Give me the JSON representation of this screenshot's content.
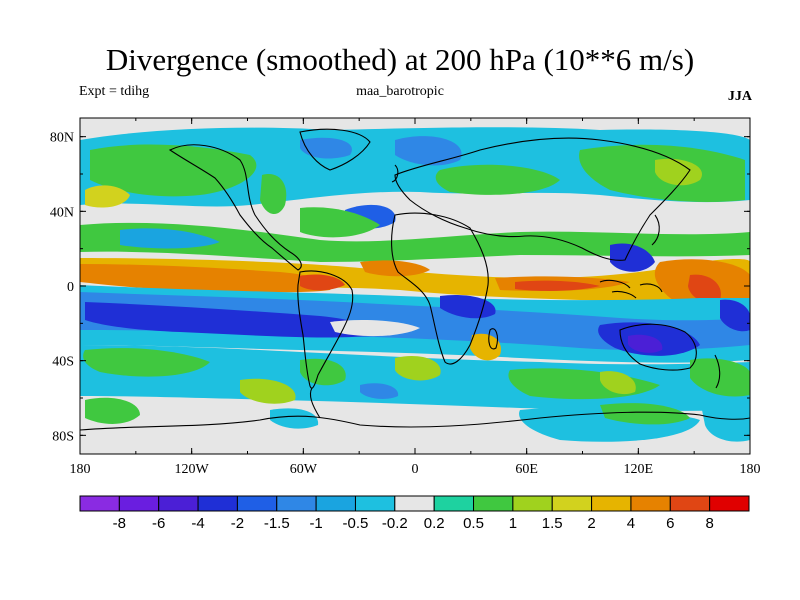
{
  "header": {
    "title": "Divergence (smoothed) at 200 hPa (10**6 m/s)",
    "expt": "Expt = tdihg",
    "run": "maa_barotropic",
    "season": "JJA"
  },
  "axes": {
    "y_ticks": [
      {
        "value": 80,
        "label": "80N"
      },
      {
        "value": 40,
        "label": "40N"
      },
      {
        "value": 0,
        "label": "0"
      },
      {
        "value": -40,
        "label": "40S"
      },
      {
        "value": -80,
        "label": "80S"
      }
    ],
    "x_ticks": [
      {
        "value": -180,
        "label": "180"
      },
      {
        "value": -120,
        "label": "120W"
      },
      {
        "value": -60,
        "label": "60W"
      },
      {
        "value": 0,
        "label": "0"
      },
      {
        "value": 60,
        "label": "60E"
      },
      {
        "value": 120,
        "label": "120E"
      },
      {
        "value": 180,
        "label": "180"
      }
    ]
  },
  "colorbar": {
    "colors": [
      "#8a2be2",
      "#6a1ee0",
      "#4b1fd6",
      "#1f2fd6",
      "#1f5fe6",
      "#2f87e6",
      "#1aa4e0",
      "#1ec0e0",
      "#e6e6e6",
      "#1ed2a0",
      "#40c840",
      "#a0d21e",
      "#d2d21e",
      "#e6b400",
      "#e68200",
      "#e04614",
      "#e00000"
    ],
    "labels": [
      "-8",
      "-6",
      "-4",
      "-2",
      "-1.5",
      "-1",
      "-0.5",
      "-0.2",
      "0.2",
      "0.5",
      "1",
      "1.5",
      "2",
      "4",
      "6",
      "8"
    ]
  }
}
